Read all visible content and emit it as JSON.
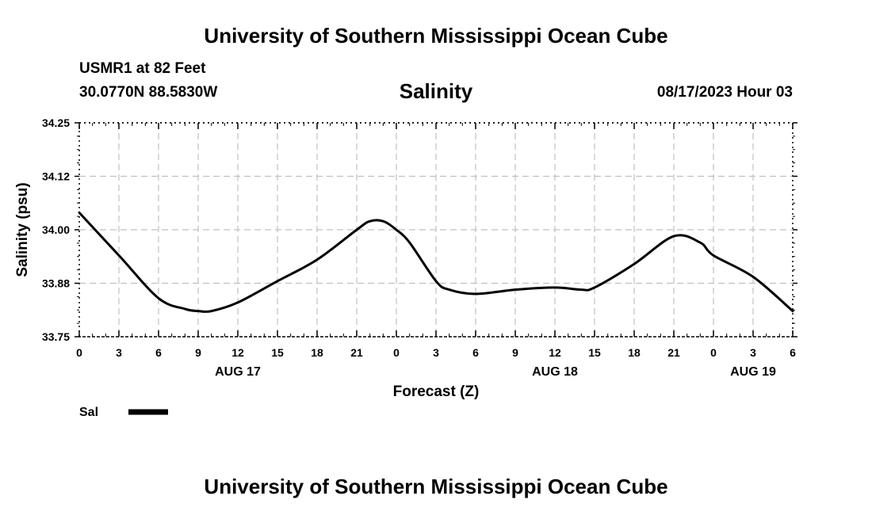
{
  "header": {
    "title": "University of Southern Mississippi Ocean Cube",
    "station": "USMR1 at 82 Feet",
    "coordinates": "30.0770N  88.5830W",
    "subtitle": "Salinity",
    "timestamp": "08/17/2023 Hour 03"
  },
  "footer": {
    "title": "University of Southern Mississippi Ocean Cube"
  },
  "colors": {
    "line": "#000000",
    "grid": "#c0c0c0",
    "background": "#ffffff"
  },
  "chart_data": {
    "type": "line",
    "title": "Salinity",
    "xlabel": "Forecast (Z)",
    "ylabel": "Salinity (psu)",
    "ylim": [
      33.75,
      34.25
    ],
    "y_ticks": [
      "33.75",
      "33.88",
      "34.00",
      "34.12",
      "34.25"
    ],
    "x_range_hours": [
      0,
      54
    ],
    "x_tick_hours": [
      0,
      3,
      6,
      9,
      12,
      15,
      18,
      21,
      24,
      27,
      30,
      33,
      36,
      39,
      42,
      45,
      48,
      51,
      54
    ],
    "x_tick_labels": [
      "0",
      "3",
      "6",
      "9",
      "12",
      "15",
      "18",
      "21",
      "0",
      "3",
      "6",
      "9",
      "12",
      "15",
      "18",
      "21",
      "0",
      "3",
      "6"
    ],
    "date_labels": [
      {
        "label": "AUG 17",
        "hour": 12
      },
      {
        "label": "AUG 18",
        "hour": 36
      },
      {
        "label": "AUG 19",
        "hour": 51
      }
    ],
    "grid": true,
    "legend": {
      "position": "bottom-left",
      "entries": [
        {
          "name": "Sal"
        }
      ]
    },
    "series": [
      {
        "name": "Sal",
        "x": [
          0,
          3,
          6,
          8,
          9,
          10,
          12,
          15,
          18,
          21,
          22,
          23,
          24,
          25,
          27,
          28,
          30,
          33,
          36,
          38,
          39,
          42,
          45,
          47,
          48,
          51,
          54
        ],
        "values": [
          34.04,
          33.94,
          33.84,
          33.815,
          33.81,
          33.81,
          33.83,
          33.88,
          33.93,
          34.0,
          34.02,
          34.02,
          34.0,
          33.97,
          33.88,
          33.86,
          33.85,
          33.86,
          33.865,
          33.86,
          33.865,
          33.92,
          33.985,
          33.97,
          33.94,
          33.89,
          33.81
        ]
      }
    ]
  }
}
